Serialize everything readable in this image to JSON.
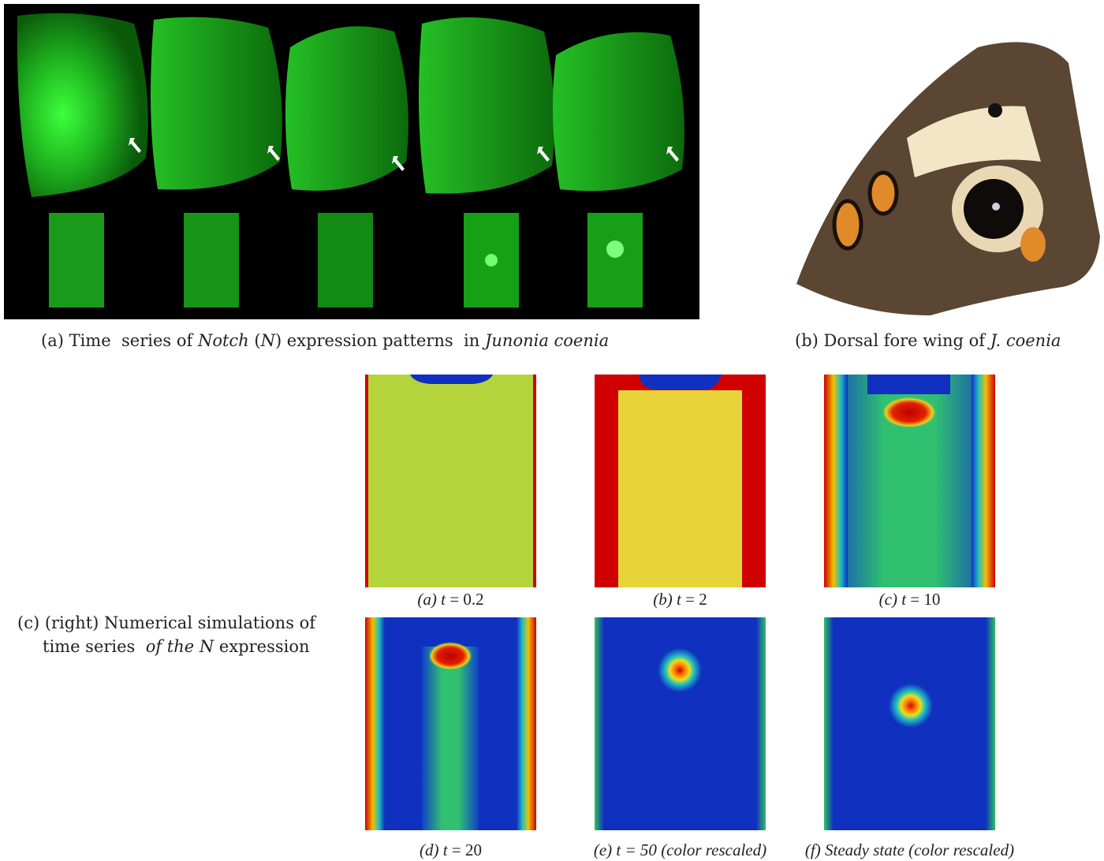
{
  "panel_a": {
    "caption": [
      "(a) Time  series of ",
      "Notch",
      " (",
      "N",
      ") expression patterns  in ",
      "Junonia coenia"
    ]
  },
  "panel_b": {
    "caption": [
      "(b) Dorsal fore wing of ",
      "J. coenia"
    ]
  },
  "panel_c": {
    "caption_lines": [
      [
        "(c) (right) Numerical simulations of"
      ],
      [
        "time series  ",
        "of the N",
        " expression"
      ]
    ],
    "simulations": [
      [
        "(a) ",
        "t",
        " = 0.2"
      ],
      [
        "(b) ",
        "t",
        " = 2"
      ],
      [
        "(c) ",
        "t",
        " = 10"
      ],
      [
        "(d) ",
        "t",
        " = 20"
      ],
      [
        "(e) ",
        "t",
        " = 50 ",
        "(color rescaled)"
      ],
      [
        "(f) ",
        "Steady state (color rescaled)"
      ]
    ]
  }
}
